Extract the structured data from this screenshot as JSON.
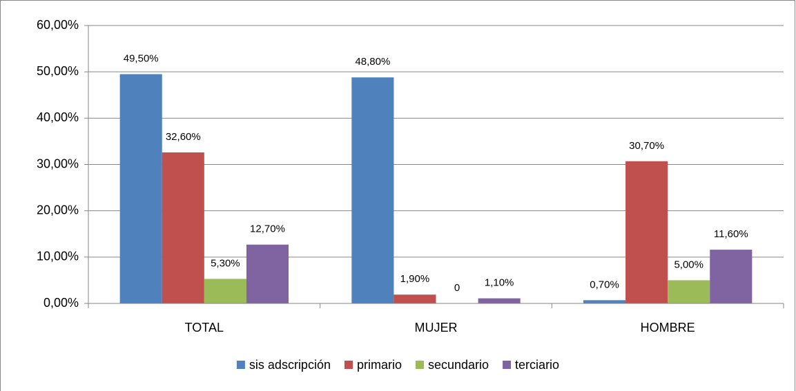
{
  "chart_data": {
    "type": "bar",
    "categories": [
      "TOTAL",
      "MUJER",
      "HOMBRE"
    ],
    "series": [
      {
        "name": "sis adscripción",
        "color": "#4f81bd",
        "values": [
          49.5,
          48.8,
          0.7
        ],
        "value_labels": [
          "49,50%",
          "48,80%",
          "0,70%"
        ]
      },
      {
        "name": "primario",
        "color": "#c0504d",
        "values": [
          32.6,
          1.9,
          30.7
        ],
        "value_labels": [
          "32,60%",
          "1,90%",
          "30,70%"
        ]
      },
      {
        "name": "secundario",
        "color": "#9bbb59",
        "values": [
          5.3,
          0,
          5.0
        ],
        "value_labels": [
          "5,30%",
          "0",
          "5,00%"
        ]
      },
      {
        "name": "terciario",
        "color": "#8064a2",
        "values": [
          12.7,
          1.1,
          11.6
        ],
        "value_labels": [
          "12,70%",
          "1,10%",
          "11,60%"
        ]
      }
    ],
    "ylim": [
      0,
      60
    ],
    "yticks": [
      {
        "value": 0,
        "label": "0,00%"
      },
      {
        "value": 10,
        "label": "10,00%"
      },
      {
        "value": 20,
        "label": "20,00%"
      },
      {
        "value": 30,
        "label": "30,00%"
      },
      {
        "value": 40,
        "label": "40,00%"
      },
      {
        "value": 50,
        "label": "50,00%"
      },
      {
        "value": 60,
        "label": "60,00%"
      }
    ],
    "grid": true,
    "legend": "bottom"
  }
}
